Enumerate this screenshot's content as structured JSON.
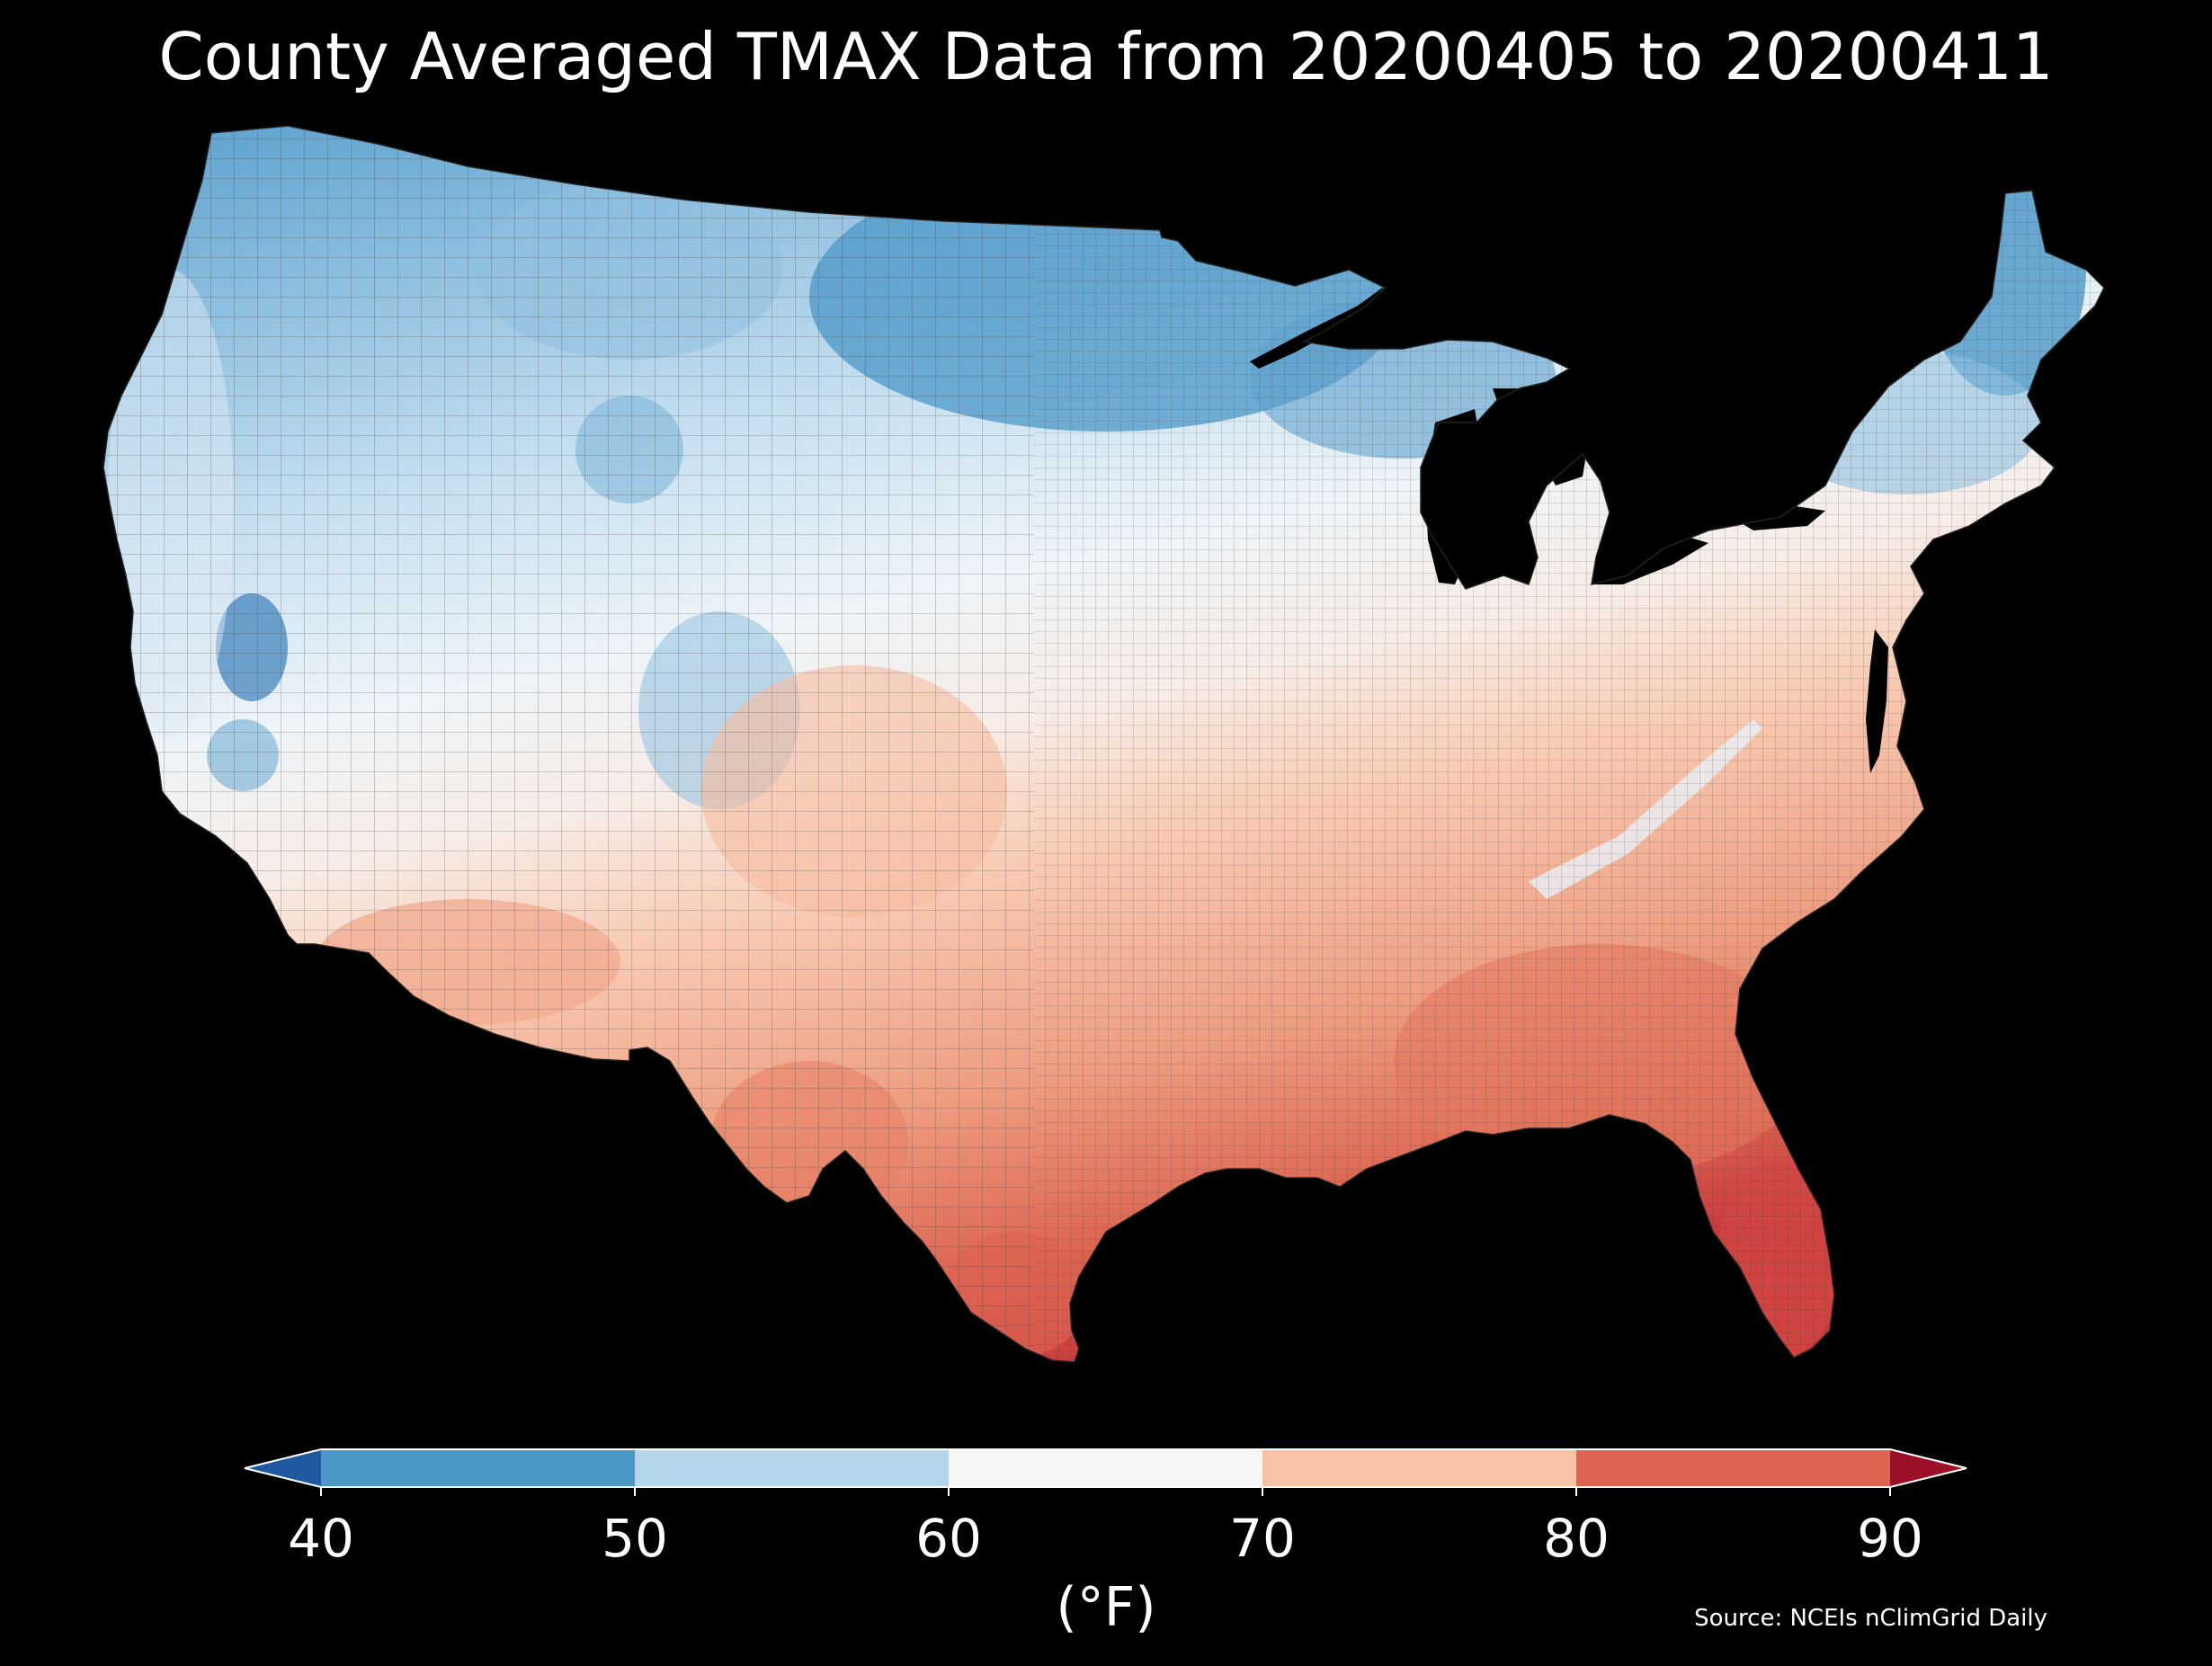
{
  "title": "County Averaged TMAX Data from 20200405 to 20200411",
  "source": "Source: NCEIs nClimGrid Daily",
  "colorbar": {
    "units_label": "(°F)",
    "ticks": [
      "40",
      "50",
      "60",
      "70",
      "80",
      "90"
    ],
    "tick_values": [
      40,
      50,
      60,
      70,
      80,
      90
    ],
    "bins": [
      {
        "range": "<40",
        "color": "#1f5aa0"
      },
      {
        "range": "40-50",
        "color": "#4b97c8"
      },
      {
        "range": "50-60",
        "color": "#b5d6ea"
      },
      {
        "range": "60-70",
        "color": "#f6f6f6"
      },
      {
        "range": "70-80",
        "color": "#f8c2a6"
      },
      {
        "range": "80-90",
        "color": "#dc6451"
      },
      {
        "range": ">90",
        "color": "#9b1128"
      }
    ],
    "extend": "both"
  },
  "map": {
    "region": "Contiguous United States",
    "unit": "county",
    "variable": "TMAX",
    "colormap": "RdBu_r",
    "vmin": 40,
    "vmax": 90,
    "pattern": "cool (40-60°F) across northern tier and Rockies; warm (70-90°F) across southern plains, Gulf Coast and Florida"
  }
}
